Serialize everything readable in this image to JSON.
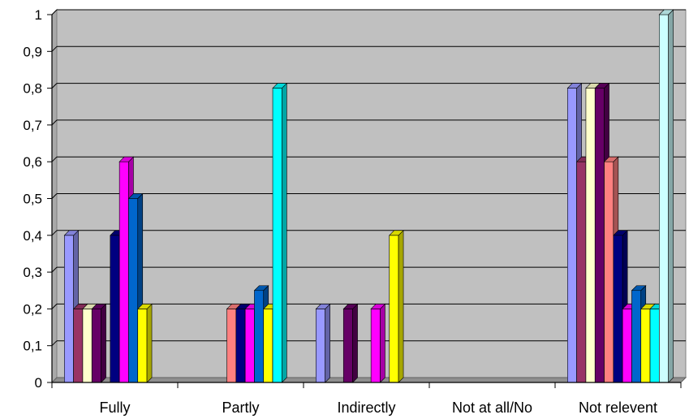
{
  "chart_data": {
    "type": "bar",
    "title": "",
    "xlabel": "",
    "ylabel": "",
    "ylim": [
      0,
      1
    ],
    "yticks": [
      "0",
      "0,1",
      "0,2",
      "0,3",
      "0,4",
      "0,5",
      "0,6",
      "0,7",
      "0,8",
      "0,9",
      "1"
    ],
    "grid": true,
    "legend": "none",
    "style": "3d-columns",
    "categories": [
      "Fully",
      "Partly",
      "Indirectly",
      "Not at all/No",
      "Not relevent"
    ],
    "series": [
      {
        "color": "#9999ff",
        "values": [
          0.4,
          0,
          0.2,
          0,
          0.8
        ]
      },
      {
        "color": "#993366",
        "values": [
          0.2,
          0,
          0,
          0,
          0.6
        ]
      },
      {
        "color": "#ffffcc",
        "values": [
          0.2,
          0,
          0,
          0,
          0.8
        ]
      },
      {
        "color": "#660066",
        "values": [
          0.2,
          0,
          0.2,
          0,
          0.8
        ]
      },
      {
        "color": "#ff8080",
        "values": [
          0,
          0.2,
          0,
          0,
          0.6
        ]
      },
      {
        "color": "#000080",
        "values": [
          0.4,
          0.2,
          0,
          0,
          0.4
        ]
      },
      {
        "color": "#ff00ff",
        "values": [
          0.6,
          0.2,
          0.2,
          0,
          0.2
        ]
      },
      {
        "color": "#0066cc",
        "values": [
          0.5,
          0.25,
          0,
          0,
          0.25
        ]
      },
      {
        "color": "#ffff00",
        "values": [
          0.2,
          0.2,
          0.4,
          0,
          0.2
        ]
      },
      {
        "color": "#00ffff",
        "values": [
          0,
          0.8,
          0,
          0,
          0.2
        ]
      },
      {
        "color": "#ccffff",
        "values": [
          0,
          0,
          0,
          0,
          1.0
        ]
      }
    ]
  },
  "colors": {
    "plot_wall": "#c0c0c0",
    "plot_top": "#a9a9a9",
    "floor": "#8f8f8f",
    "gridline": "#000000"
  }
}
